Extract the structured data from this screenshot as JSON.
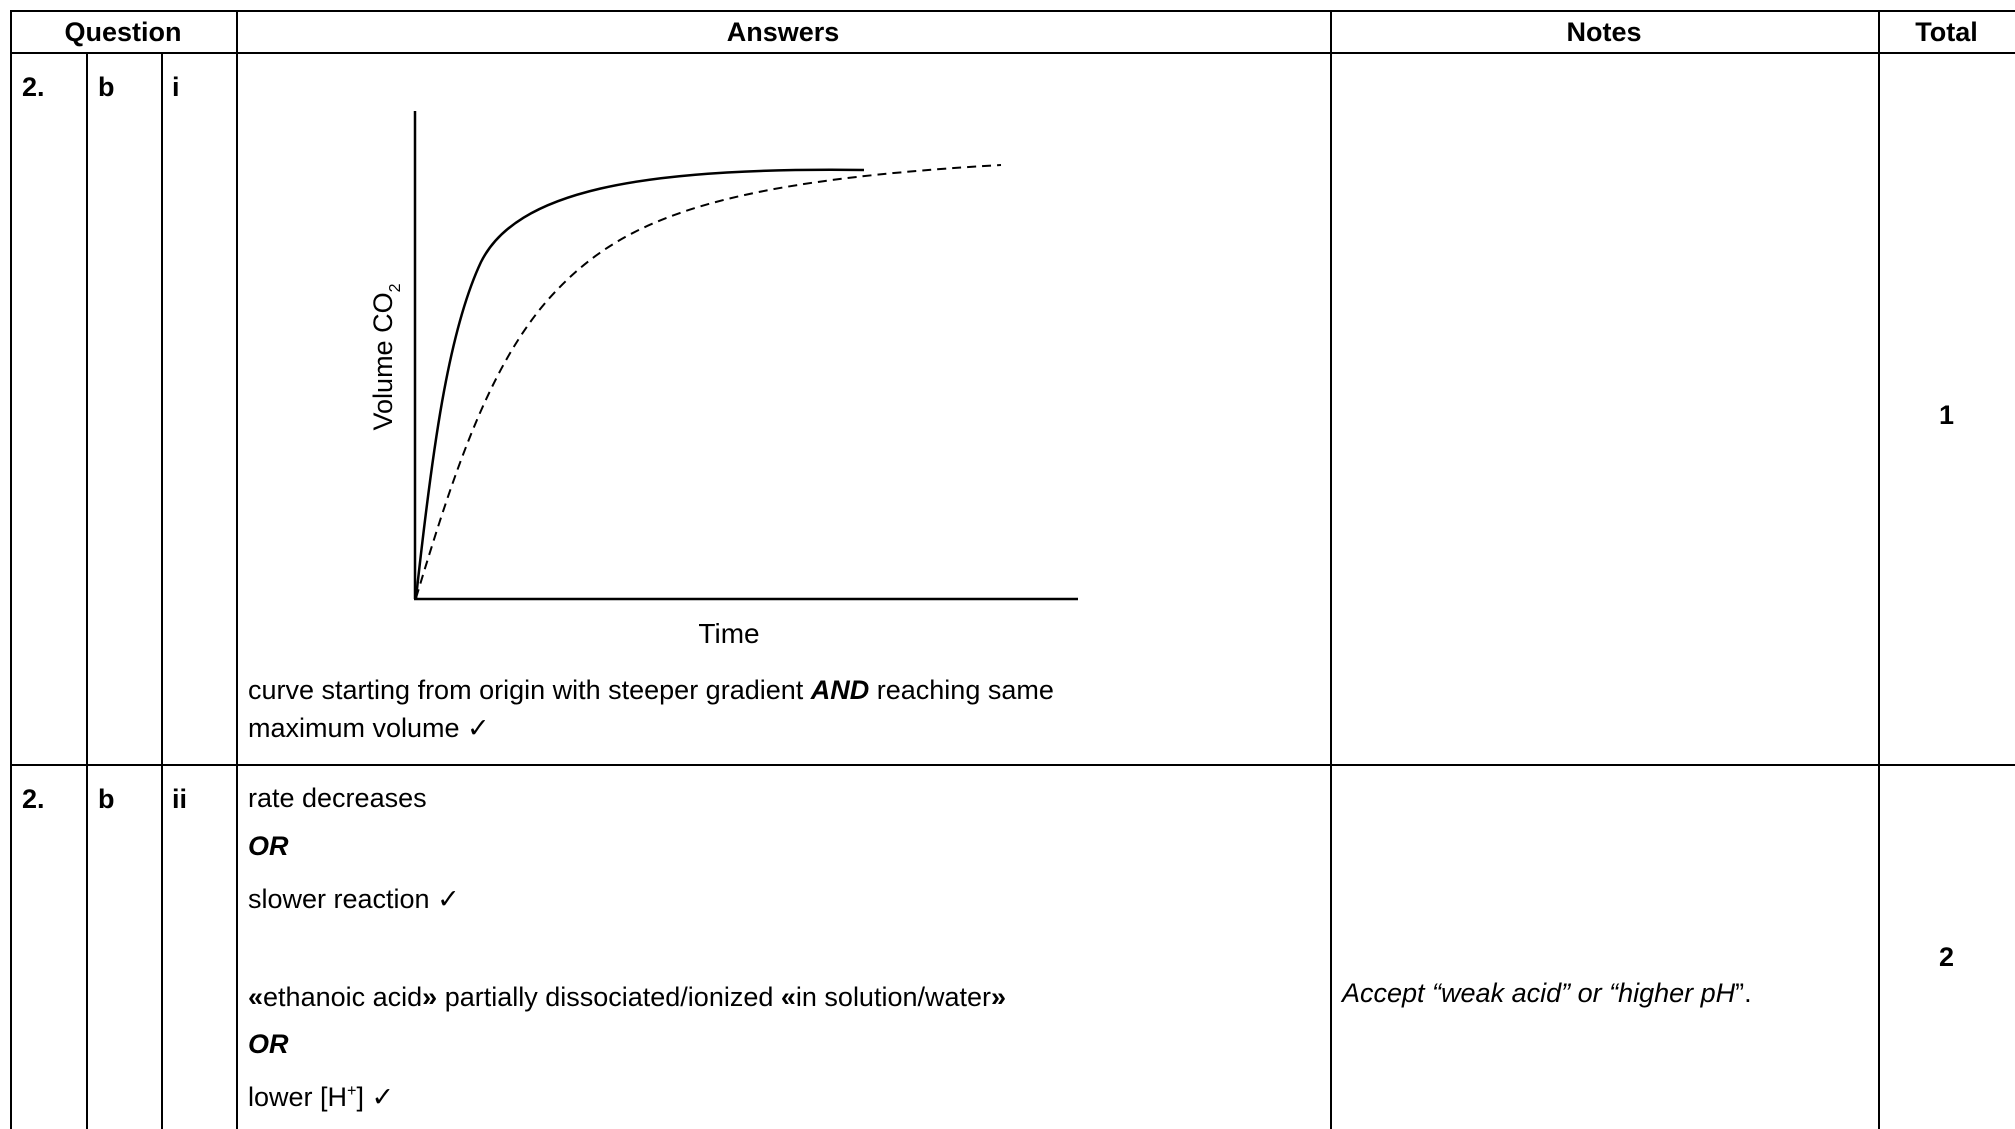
{
  "header": {
    "question": "Question",
    "answers": "Answers",
    "notes": "Notes",
    "total": "Total"
  },
  "rows": [
    {
      "num": "2.",
      "part": "b",
      "sub": "i",
      "graph": {
        "y_label": "Volume CO",
        "y_label_sub": "2",
        "x_label": "Time"
      },
      "answer_line1_a": "curve starting from origin with steeper gradient ",
      "answer_line1_b": "AND",
      "answer_line1_c": " reaching same",
      "answer_line2": "maximum volume ✓",
      "notes": "",
      "total": "1"
    },
    {
      "num": "2.",
      "part": "b",
      "sub": "ii",
      "a1": "rate decreases",
      "or1": "OR",
      "a2": "slower reaction ✓",
      "a3_q1": "«",
      "a3_t1": "ethanoic acid",
      "a3_q2": "»",
      "a3_t2": " partially dissociated/ionized ",
      "a3_q3": "«",
      "a3_t3": "in solution/water",
      "a3_q4": "»",
      "or2": "OR",
      "a4_pre": "lower [H",
      "a4_sup": "+",
      "a4_post": "] ✓",
      "notes_a": "Accept “weak acid” or “higher pH",
      "notes_b": "”.",
      "total": "2"
    }
  ]
}
